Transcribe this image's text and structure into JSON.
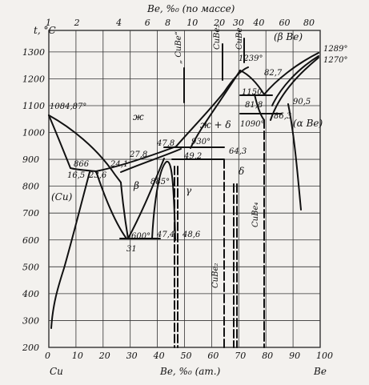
{
  "chart_data": {
    "type": "phase-diagram",
    "title": "",
    "top_axis_label": "Be, %₀ (по массе)",
    "bottom_axis_label": "Be, %₀ (ат.)",
    "left_axis_label": "t, °C",
    "bottom_left_element": "Cu",
    "bottom_right_element": "Be",
    "x_ticks_at": [
      0,
      10,
      20,
      30,
      40,
      50,
      60,
      70,
      80,
      90,
      100
    ],
    "y_ticks": [
      200,
      300,
      400,
      500,
      600,
      700,
      800,
      900,
      1000,
      1100,
      1200,
      1300
    ],
    "top_ticks": [
      "1",
      "2",
      "4",
      "6",
      "8",
      "10",
      "20",
      "30",
      "40",
      "60",
      "80"
    ],
    "annotations": {
      "cu_melting": "1084,87°",
      "t866": "866",
      "t16_5": "16,5",
      "t23_6": "23,6",
      "t24_1": "24,1",
      "t27_8": "27,8",
      "beta": "β",
      "t885": "885°",
      "t600": "600°",
      "t31": "31",
      "t47_4": "47,4",
      "t48_6": "48,6",
      "t47_8": "47,8",
      "t49_2": "49,2",
      "t930": "930°",
      "t64_3": "64,3",
      "liquid": "ж",
      "liquid_delta": "ж + δ",
      "delta": "δ",
      "gamma": "γ",
      "cu_phase": "(Cu)",
      "cube_quote": "„ CuBe“",
      "cube2_top": "CuBe₂",
      "cube_top": "CuBe",
      "cube2_vertical": "CuBe₂",
      "cube4_vertical": "CuBe₄",
      "t1239": "1239°",
      "t1289": "1289°",
      "t1270": "1270°",
      "t82_7": "82,7",
      "t1150": "1150",
      "t81_8": "81,8",
      "t1090": "1090°",
      "t86_3": "86,3",
      "t90_5": "90,5",
      "beta_be": "(β Be)",
      "alpha_be": "(α Be)"
    }
  }
}
